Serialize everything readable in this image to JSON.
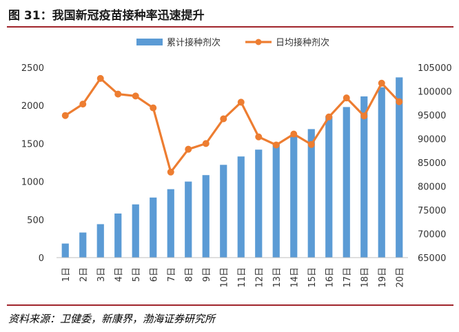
{
  "figure": {
    "title": "图 31：我国新冠疫苗接种率迅速提升",
    "source": "资料来源：卫健委，新康界，渤海证券研究所"
  },
  "chart_data": {
    "type": "bar+line",
    "categories": [
      "1日",
      "2日",
      "3日",
      "4日",
      "5日",
      "6日",
      "7日",
      "8日",
      "9日",
      "10日",
      "11日",
      "12日",
      "13日",
      "14日",
      "15日",
      "16日",
      "17日",
      "18日",
      "19日",
      "20日"
    ],
    "series": [
      {
        "name": "累计接种剂次",
        "type": "bar",
        "axis": "left",
        "color": "#5b9bd5",
        "values": [
          185,
          330,
          440,
          580,
          700,
          790,
          900,
          1000,
          1085,
          1220,
          1330,
          1420,
          1500,
          1600,
          1690,
          1860,
          1980,
          2120,
          2240,
          2370
        ]
      },
      {
        "name": "日均接种剂次",
        "type": "line",
        "axis": "right",
        "color": "#ed7d31",
        "values": [
          94900,
          97300,
          102700,
          99400,
          99000,
          96500,
          83000,
          87800,
          89000,
          94200,
          97700,
          90400,
          88700,
          91000,
          88800,
          94600,
          98600,
          94800,
          101700,
          97800
        ]
      }
    ],
    "y_left": {
      "min": 0,
      "max": 2500,
      "ticks": [
        0,
        500,
        1000,
        1500,
        2000,
        2500
      ]
    },
    "y_right": {
      "min": 65000,
      "max": 105000,
      "ticks": [
        65000,
        70000,
        75000,
        80000,
        85000,
        90000,
        95000,
        100000,
        105000
      ]
    },
    "legend": {
      "position": "top"
    },
    "grid": false
  }
}
